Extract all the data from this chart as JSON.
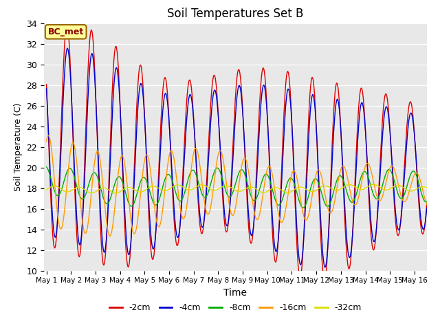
{
  "title": "Soil Temperatures Set B",
  "xlabel": "Time",
  "ylabel": "Soil Temperature (C)",
  "ylim": [
    10,
    34
  ],
  "yticks": [
    10,
    12,
    14,
    16,
    18,
    20,
    22,
    24,
    26,
    28,
    30,
    32,
    34
  ],
  "annotation": "BC_met",
  "colors": {
    "-2cm": "#dd0000",
    "-4cm": "#0000cc",
    "-8cm": "#00aa00",
    "-16cm": "#ff9900",
    "-32cm": "#dddd00"
  },
  "legend_labels": [
    "-2cm",
    "-4cm",
    "-8cm",
    "-16cm",
    "-32cm"
  ],
  "background_color": "#e8e8e8",
  "days": 15.5,
  "points_per_day": 48
}
